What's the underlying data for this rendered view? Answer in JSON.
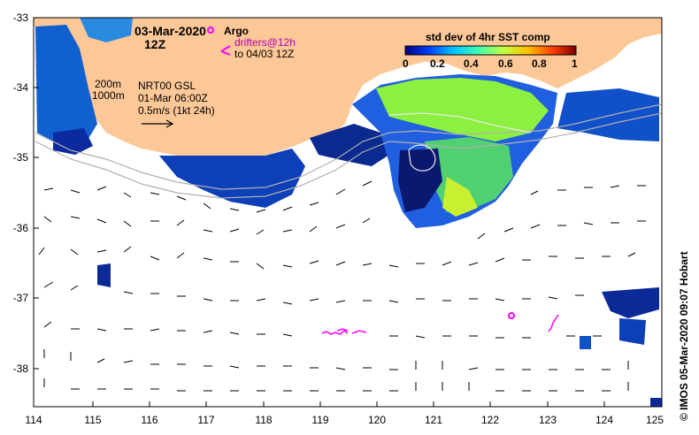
{
  "header": {
    "date": "03-Mar-2020",
    "time": "12Z",
    "legend_argo": "Argo",
    "legend_drifters": "drifters@12h",
    "legend_drifters_2": "to 04/03 12Z",
    "legend_drifter_symbol": "<"
  },
  "overlay": {
    "contour_200": "200m",
    "contour_1000": "1000m",
    "current_source": "NRT00 GSL",
    "current_time": "01-Mar 06:00Z",
    "vector_scale": "0.5m/s (1kt 24h)"
  },
  "colorbar": {
    "title": "std dev of 4hr SST comp",
    "ticks": [
      "0",
      "0.2",
      "0.4",
      "0.6",
      "0.8",
      "1"
    ],
    "colors": [
      "#000080",
      "#0040ff",
      "#00c0ff",
      "#40ffb0",
      "#c0ff40",
      "#ffc000",
      "#ff4000",
      "#800000"
    ]
  },
  "axes": {
    "x_ticks": [
      "114",
      "115",
      "116",
      "117",
      "118",
      "119",
      "120",
      "121",
      "122",
      "123",
      "124",
      "125"
    ],
    "y_ticks": [
      "-33",
      "-34",
      "-35",
      "-36",
      "-37",
      "-38"
    ],
    "lon_range": [
      114,
      125
    ],
    "lat_range": [
      -38.5,
      -33
    ]
  },
  "colors": {
    "land": "#fcc898",
    "argo": "#ff00ff",
    "isobath": "#b0b0b0"
  },
  "credit": "© IMOS 05-Mar-2020 09:07 Hobart"
}
